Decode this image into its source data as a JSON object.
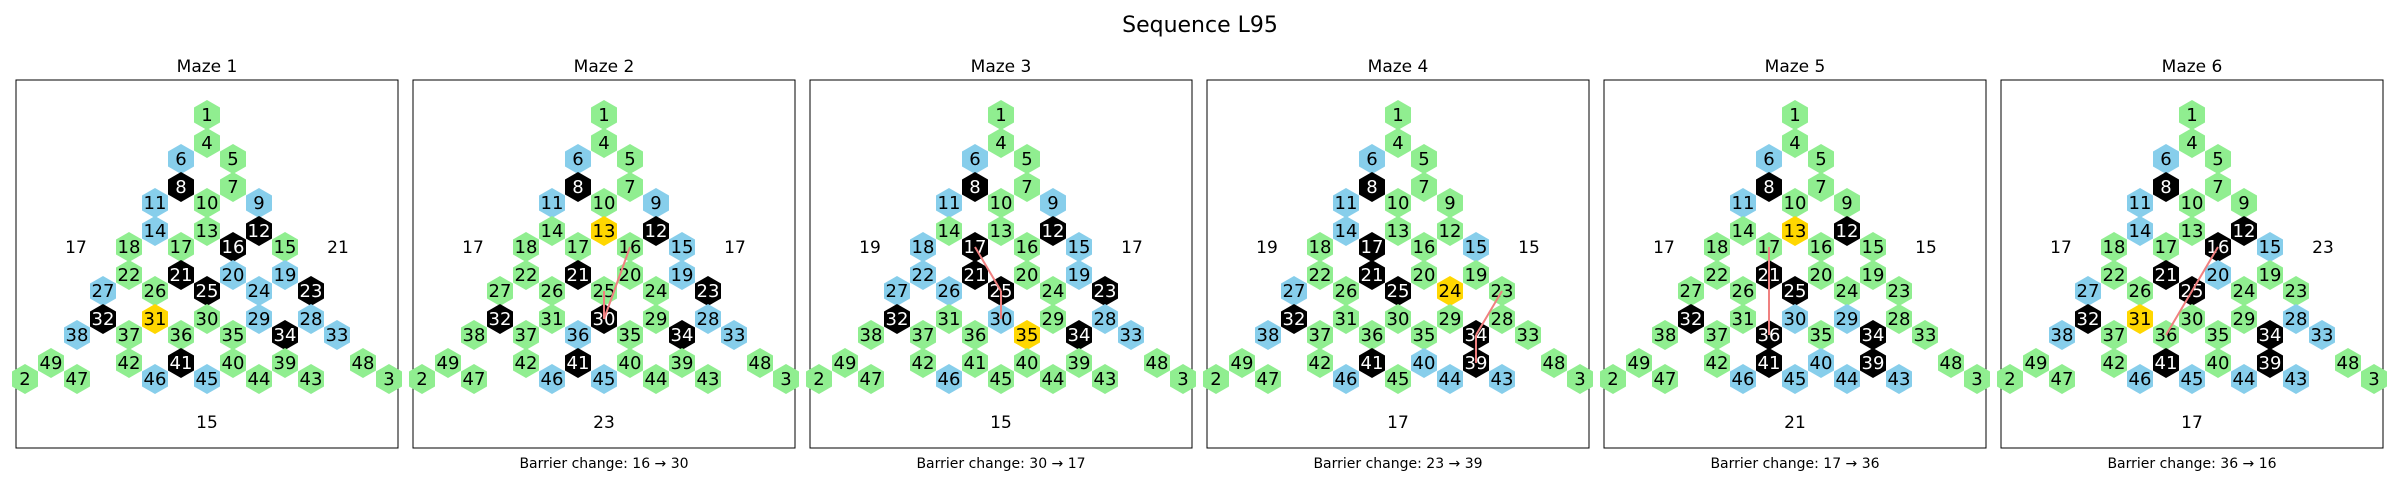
{
  "title": "Sequence L95",
  "colors": {
    "green": "#90ee90",
    "blue": "#87ceeb",
    "black": "#000000",
    "gold": "#ffd700",
    "path": "#f08080"
  },
  "layout_order": [
    [
      1
    ],
    [
      4,
      5
    ],
    [
      6,
      7
    ],
    [
      8,
      10,
      9
    ],
    [
      11,
      13,
      12
    ],
    [
      14,
      16,
      15
    ],
    [
      18,
      17,
      20,
      19
    ],
    [
      22,
      21,
      25,
      24,
      23
    ],
    [
      27,
      26,
      30,
      29,
      28
    ],
    [
      32,
      31,
      36,
      35,
      34,
      33
    ],
    [
      38,
      37,
      41,
      40,
      39,
      33
    ],
    [
      49,
      42,
      45,
      44,
      43,
      48
    ],
    [
      2,
      47,
      46,
      45,
      44,
      43,
      3
    ]
  ],
  "mazes": [
    {
      "title": "Maze 1",
      "left": "17",
      "right": "21",
      "bottom": "15",
      "caption": "",
      "blue": [
        6,
        11,
        14,
        27,
        38,
        46,
        45,
        9,
        12,
        19,
        20,
        24,
        29,
        28,
        33
      ],
      "black": [
        8,
        16,
        21,
        25,
        32,
        41,
        12,
        23,
        34
      ],
      "gold": [
        31
      ],
      "path": []
    },
    {
      "title": "Maze 2",
      "left": "17",
      "right": "17",
      "bottom": "23",
      "caption": "Barrier change: 16 → 30",
      "blue": [
        6,
        11,
        9,
        15,
        19,
        28,
        33,
        36,
        45,
        46
      ],
      "black": [
        8,
        12,
        21,
        32,
        30,
        41,
        23,
        34
      ],
      "gold": [
        13
      ],
      "path": [
        [
          16,
          30
        ],
        [
          25,
          30
        ]
      ]
    },
    {
      "title": "Maze 3",
      "left": "19",
      "right": "17",
      "bottom": "15",
      "caption": "Barrier change: 30 → 17",
      "blue": [
        11,
        6,
        9,
        18,
        15,
        26,
        19,
        28,
        33,
        46,
        22,
        27,
        30
      ],
      "black": [
        8,
        12,
        17,
        21,
        25,
        23,
        32,
        34
      ],
      "gold": [
        35
      ],
      "path": [
        [
          17,
          25
        ],
        [
          25,
          30
        ]
      ]
    },
    {
      "title": "Maze 4",
      "left": "19",
      "right": "15",
      "bottom": "17",
      "caption": "Barrier change: 23 → 39",
      "blue": [
        6,
        11,
        14,
        15,
        27,
        38,
        40,
        44,
        43,
        46
      ],
      "black": [
        8,
        17,
        21,
        25,
        32,
        41,
        34,
        39
      ],
      "gold": [
        24
      ],
      "path": [
        [
          23,
          34
        ],
        [
          34,
          39
        ]
      ]
    },
    {
      "title": "Maze 5",
      "left": "17",
      "right": "15",
      "bottom": "21",
      "caption": "Barrier change: 17 → 36",
      "blue": [
        6,
        11,
        30,
        29,
        40,
        45,
        46,
        44,
        43
      ],
      "black": [
        8,
        12,
        21,
        25,
        32,
        36,
        41,
        34,
        39
      ],
      "gold": [
        13
      ],
      "path": [
        [
          17,
          21
        ],
        [
          21,
          36
        ]
      ]
    },
    {
      "title": "Maze 6",
      "left": "17",
      "right": "23",
      "bottom": "17",
      "caption": "Barrier change: 36 → 16",
      "blue": [
        6,
        11,
        14,
        15,
        20,
        27,
        38,
        46,
        45,
        44,
        43,
        28,
        33
      ],
      "black": [
        8,
        12,
        16,
        21,
        25,
        32,
        41,
        34,
        39
      ],
      "gold": [
        31
      ],
      "path": [
        [
          36,
          16
        ]
      ]
    }
  ]
}
